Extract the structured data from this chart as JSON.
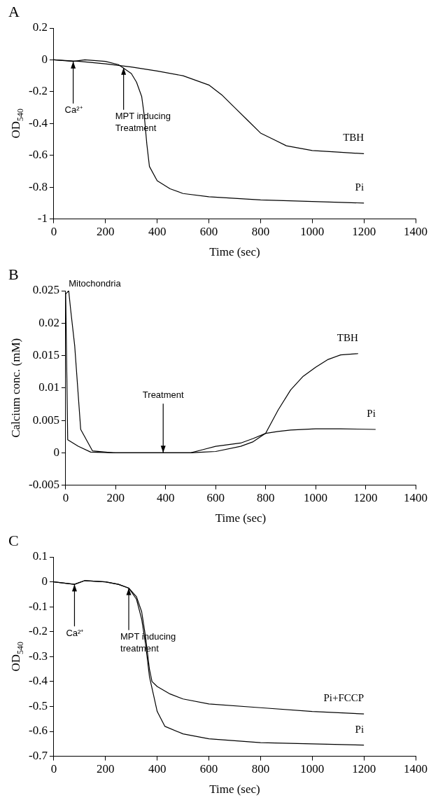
{
  "chart_data": [
    {
      "type": "line",
      "title": "A",
      "xlabel": "Time (sec)",
      "ylabel": "OD$_{540}$",
      "xlim": [
        0,
        1400
      ],
      "xticks": [
        0,
        200,
        400,
        600,
        800,
        1000,
        1200,
        1400
      ],
      "ylim": [
        -1,
        0.2
      ],
      "yticks": [
        0.2,
        0,
        -0.2,
        -0.4,
        -0.6,
        -0.8,
        -1
      ],
      "grid": false,
      "legend": false,
      "marker": "none",
      "line_style": "solid",
      "series": [
        {
          "name": "TBH",
          "color": "#000000",
          "x": [
            0,
            100,
            200,
            300,
            400,
            500,
            600,
            650,
            700,
            750,
            800,
            850,
            900,
            1000,
            1100,
            1200
          ],
          "values": [
            0,
            -0.01,
            -0.025,
            -0.045,
            -0.07,
            -0.1,
            -0.158,
            -0.22,
            -0.3,
            -0.38,
            -0.46,
            -0.5,
            -0.54,
            -0.57,
            -0.58,
            -0.59
          ]
        },
        {
          "name": "Pi",
          "color": "#000000",
          "x": [
            0,
            75,
            120,
            200,
            250,
            300,
            320,
            340,
            350,
            360,
            370,
            400,
            450,
            500,
            600,
            800,
            1000,
            1200
          ],
          "values": [
            0,
            -0.01,
            0,
            -0.01,
            -0.03,
            -0.086,
            -0.14,
            -0.23,
            -0.35,
            -0.53,
            -0.67,
            -0.76,
            -0.81,
            -0.84,
            -0.86,
            -0.88,
            -0.89,
            -0.9
          ]
        }
      ],
      "annotations": [
        {
          "text": "Ca²⁺",
          "x": 75,
          "y": -0.01
        },
        {
          "text": "MPT inducing\nTreatment",
          "x": 270,
          "y": -0.05
        }
      ]
    },
    {
      "type": "line",
      "title": "B",
      "xlabel": "Time (sec)",
      "ylabel": "Calcium conc. (mM)",
      "xlim": [
        0,
        1400
      ],
      "xticks": [
        0,
        200,
        400,
        600,
        800,
        1000,
        1200,
        1400
      ],
      "ylim": [
        -0.005,
        0.025
      ],
      "yticks": [
        0.025,
        0.02,
        0.015,
        0.01,
        0.005,
        0,
        -0.005
      ],
      "grid": false,
      "legend": false,
      "marker": "none",
      "line_style": "solid",
      "series": [
        {
          "name": "TBH",
          "color": "#000000",
          "x": [
            0,
            12,
            20,
            36,
            60,
            107,
            190,
            500,
            550,
            600,
            700,
            750,
            800,
            850,
            900,
            950,
            1000,
            1050,
            1100,
            1170
          ],
          "values": [
            0.0245,
            0.025,
            0.022,
            0.0165,
            0.0036,
            0.0003,
            0,
            0,
            0.0005,
            0.001,
            0.0015,
            0.0022,
            0.003,
            0.0066,
            0.0097,
            0.0118,
            0.0132,
            0.0144,
            0.0151,
            0.0153
          ]
        },
        {
          "name": "Pi",
          "color": "#000000",
          "x": [
            0,
            8,
            50,
            100,
            200,
            500,
            550,
            600,
            700,
            750,
            800,
            850,
            900,
            1000,
            1100,
            1240
          ],
          "values": [
            0.0245,
            0.002,
            0.001,
            0.0001,
            0,
            0,
            0.0001,
            0.0002,
            0.001,
            0.0017,
            0.003,
            0.0033,
            0.0035,
            0.0037,
            0.0037,
            0.0036
          ]
        }
      ],
      "annotations": [
        {
          "text": "Mitochondria",
          "x": 12,
          "y": 0.025
        },
        {
          "text": "Treatment",
          "x": 390,
          "y": 0
        }
      ]
    },
    {
      "type": "line",
      "title": "C",
      "xlabel": "Time (sec)",
      "ylabel": "OD$_{540}$",
      "xlim": [
        0,
        1400
      ],
      "xticks": [
        0,
        200,
        400,
        600,
        800,
        1000,
        1200,
        1400
      ],
      "ylim": [
        -0.7,
        0.1
      ],
      "yticks": [
        0.1,
        0,
        -0.1,
        -0.2,
        -0.3,
        -0.4,
        -0.5,
        -0.6,
        -0.7
      ],
      "grid": false,
      "legend": false,
      "marker": "none",
      "line_style": "solid",
      "series": [
        {
          "name": "Pi+FCCP",
          "color": "#000000",
          "x": [
            0,
            80,
            120,
            200,
            250,
            290,
            320,
            340,
            355,
            370,
            380,
            400,
            450,
            500,
            600,
            800,
            1000,
            1200
          ],
          "values": [
            0,
            -0.01,
            0.005,
            0,
            -0.01,
            -0.025,
            -0.06,
            -0.12,
            -0.22,
            -0.35,
            -0.4,
            -0.42,
            -0.45,
            -0.47,
            -0.49,
            -0.505,
            -0.52,
            -0.53
          ]
        },
        {
          "name": "Pi",
          "color": "#000000",
          "x": [
            0,
            80,
            120,
            200,
            250,
            290,
            320,
            340,
            355,
            370,
            385,
            400,
            430,
            500,
            600,
            800,
            1000,
            1200
          ],
          "values": [
            0,
            -0.01,
            0.005,
            0,
            -0.01,
            -0.025,
            -0.07,
            -0.15,
            -0.25,
            -0.38,
            -0.45,
            -0.52,
            -0.58,
            -0.61,
            -0.63,
            -0.645,
            -0.65,
            -0.655
          ]
        }
      ],
      "annotations": [
        {
          "text": "Ca²⁺",
          "x": 80,
          "y": -0.01
        },
        {
          "text": "MPT inducing\ntreatment",
          "x": 290,
          "y": -0.025
        }
      ]
    }
  ]
}
